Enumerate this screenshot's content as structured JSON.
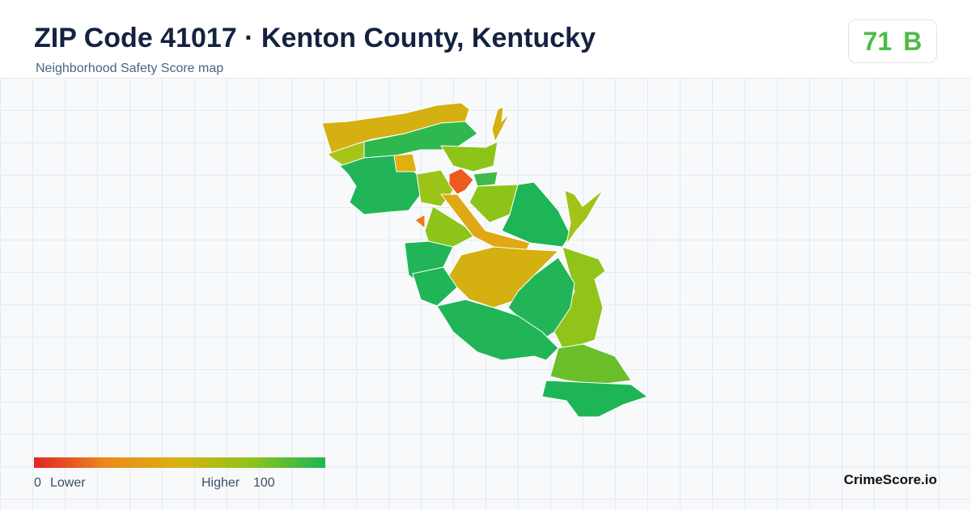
{
  "header": {
    "title": "ZIP Code 41017 · Kenton County, Kentucky",
    "subtitle": "Neighborhood Safety Score map"
  },
  "score": {
    "value": 71,
    "grade": "B"
  },
  "legend": {
    "min": 0,
    "min_label": "Lower",
    "max_label": "Higher",
    "max": 100
  },
  "brand": "CrimeScore.io"
}
